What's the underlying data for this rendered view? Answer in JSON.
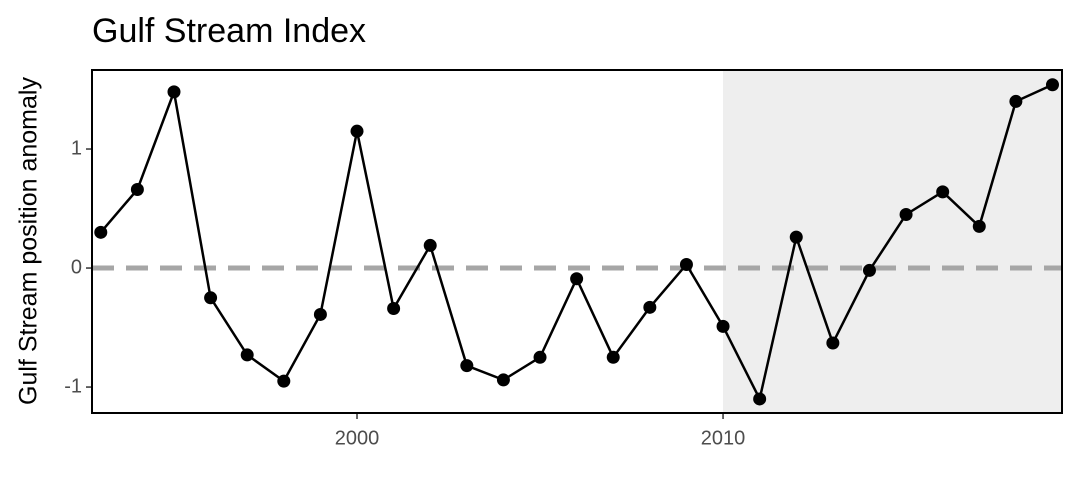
{
  "chart_data": {
    "type": "line",
    "title": "Gulf Stream Index",
    "ylabel": "Gulf Stream position anomaly",
    "x": [
      1993,
      1994,
      1995,
      1996,
      1997,
      1998,
      1999,
      2000,
      2001,
      2002,
      2003,
      2004,
      2005,
      2006,
      2007,
      2008,
      2009,
      2010,
      2011,
      2012,
      2013,
      2014,
      2015,
      2016,
      2017,
      2018,
      2019
    ],
    "series": [
      {
        "name": "Gulf Stream Index",
        "color": "#000000",
        "values": [
          0.3,
          0.66,
          1.48,
          -0.25,
          -0.73,
          -0.95,
          -0.39,
          1.15,
          -0.34,
          0.19,
          -0.82,
          -0.94,
          -0.75,
          -0.09,
          -0.75,
          -0.33,
          0.03,
          -0.49,
          -1.1,
          0.26,
          -0.63,
          -0.02,
          0.45,
          0.64,
          0.35,
          1.4,
          1.54
        ]
      }
    ],
    "xlim": [
      1992.76,
      2019.26
    ],
    "ylim": [
      -1.218,
      1.664
    ],
    "xticks": [
      2000,
      2010
    ],
    "yticks": [
      -1,
      0,
      1
    ],
    "highlight_start": 2010,
    "highlight_color": "#eeeeee",
    "reference_line": 0,
    "reference_color": "#a6a6a6"
  }
}
